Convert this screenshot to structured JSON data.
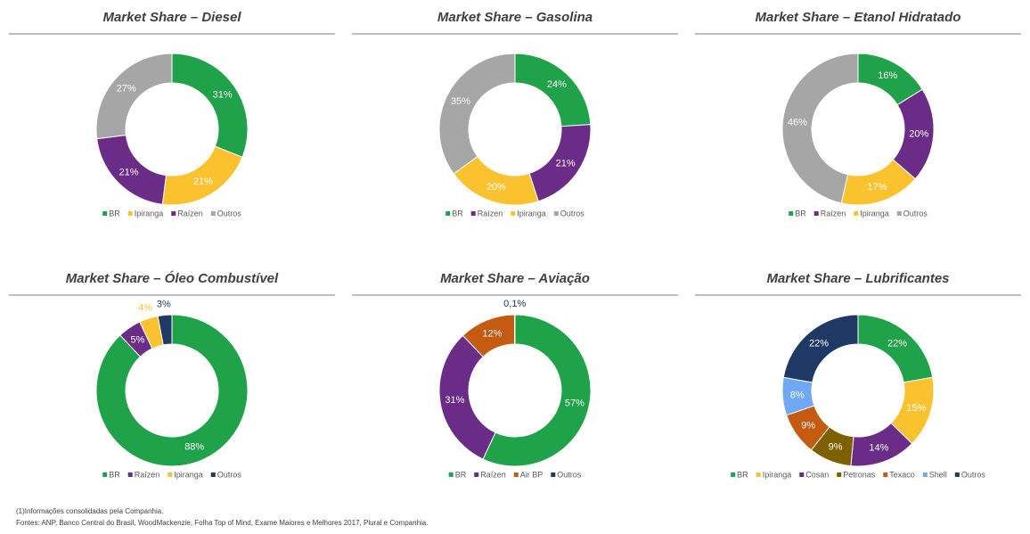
{
  "chart_data": [
    {
      "type": "donut",
      "title": "Market Share – Diesel",
      "categories": [
        "BR",
        "Ipiranga",
        "Raízen",
        "Outros"
      ],
      "values": [
        31,
        21,
        21,
        27
      ],
      "value_labels": [
        "31%",
        "21%",
        "21%",
        "27%"
      ],
      "colors": [
        "#1fa24a",
        "#f9c22e",
        "#6b2c87",
        "#a6a6a6"
      ]
    },
    {
      "type": "donut",
      "title": "Market Share – Gasolina",
      "categories": [
        "BR",
        "Raízen",
        "Ipiranga",
        "Outros"
      ],
      "values": [
        24,
        21,
        20,
        35
      ],
      "value_labels": [
        "24%",
        "21%",
        "20%",
        "35%"
      ],
      "colors": [
        "#1fa24a",
        "#6b2c87",
        "#f9c22e",
        "#a6a6a6"
      ]
    },
    {
      "type": "donut",
      "title": "Market Share – Etanol Hidratado",
      "categories": [
        "BR",
        "Raízen",
        "Ipiranga",
        "Outros"
      ],
      "values": [
        16,
        20,
        17,
        46
      ],
      "value_labels": [
        "16%",
        "20%",
        "17%",
        "46%"
      ],
      "colors": [
        "#1fa24a",
        "#6b2c87",
        "#f9c22e",
        "#a6a6a6"
      ]
    },
    {
      "type": "donut",
      "title": "Market Share – Óleo Combustível",
      "categories": [
        "BR",
        "Raízen",
        "Ipiranga",
        "Outros"
      ],
      "values": [
        88,
        5,
        4,
        3
      ],
      "value_labels": [
        "88%",
        "5%",
        "4%",
        "3%"
      ],
      "colors": [
        "#1fa24a",
        "#6b2c87",
        "#f9c22e",
        "#1f3864"
      ]
    },
    {
      "type": "donut",
      "title": "Market Share – Aviação",
      "categories": [
        "BR",
        "Raízen",
        "Air BP",
        "Outros"
      ],
      "values": [
        57,
        31,
        12,
        0.1
      ],
      "value_labels": [
        "57%",
        "31%",
        "12%",
        "0,1%"
      ],
      "colors": [
        "#1fa24a",
        "#6b2c87",
        "#c55a11",
        "#1f3864"
      ]
    },
    {
      "type": "donut",
      "title": "Market Share – Lubrificantes",
      "categories": [
        "BR",
        "Ipiranga",
        "Cosan",
        "Petronas",
        "Texaco",
        "Shell",
        "Outros"
      ],
      "values": [
        22,
        15,
        14,
        9,
        9,
        8,
        22
      ],
      "value_labels": [
        "22%",
        "15%",
        "14%",
        "9%",
        "9%",
        "8%",
        "22%"
      ],
      "colors": [
        "#1fa24a",
        "#f9c22e",
        "#6b2c87",
        "#7f6000",
        "#c55a11",
        "#6fa8f5",
        "#1f3864"
      ]
    }
  ],
  "footnotes": [
    "(1)Informações consolidadas pela Companhia.",
    "Fontes: ANP, Banco Central do Brasil, WoodMackenzie, Folha Top of Mind, Exame Maiores e Melhores 2017, Plural e Companhia."
  ]
}
